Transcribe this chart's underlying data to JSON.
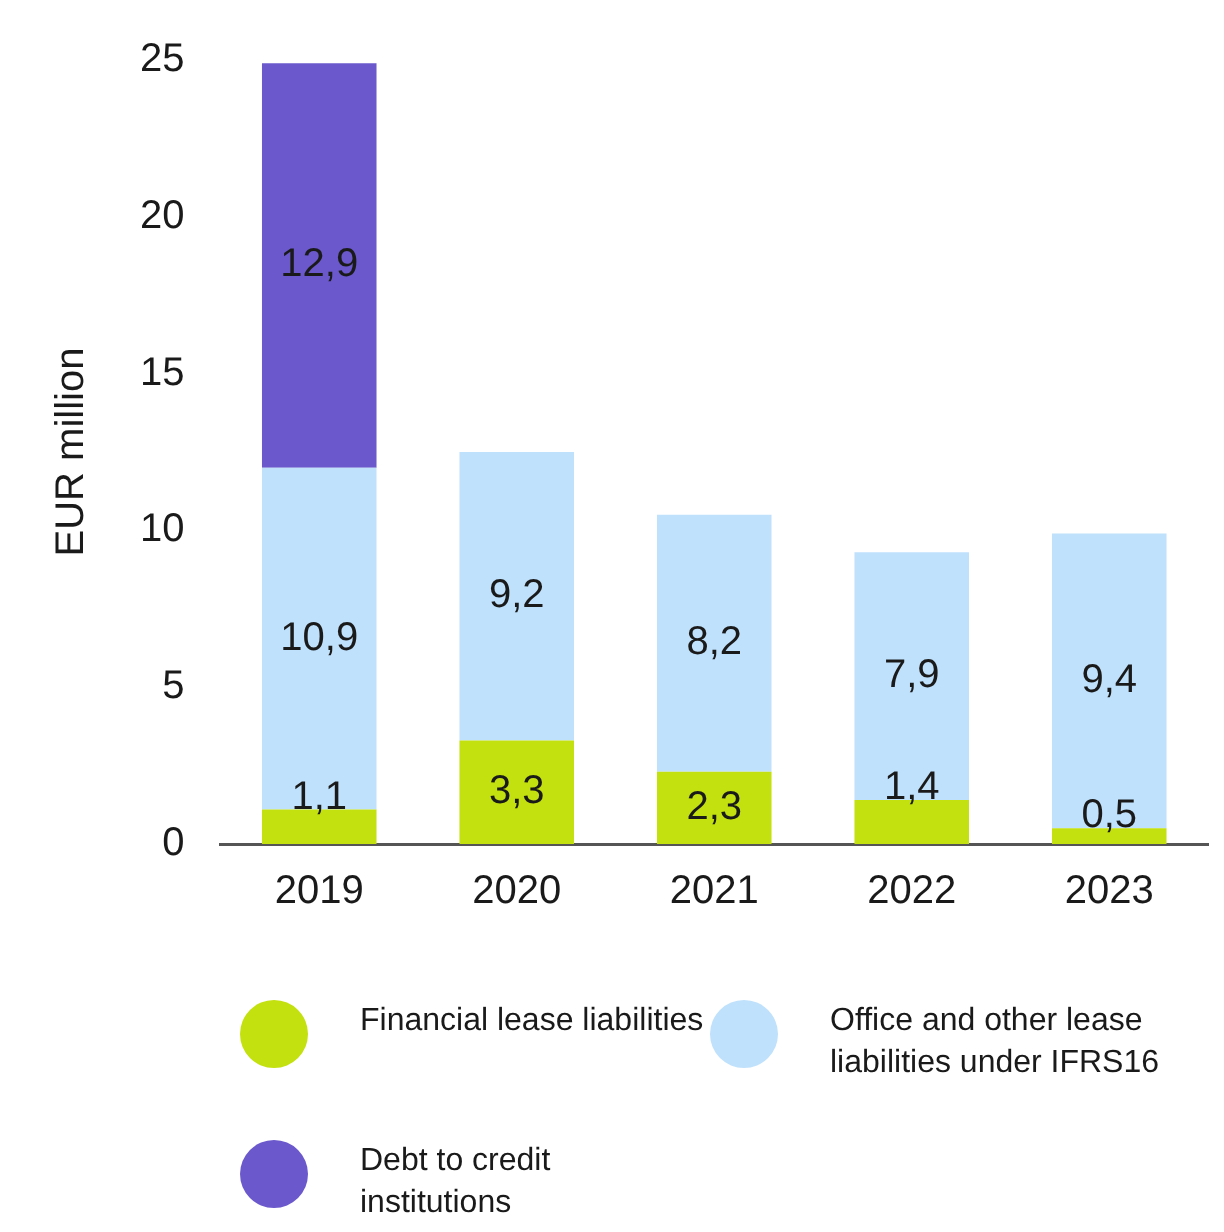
{
  "chart_data": {
    "type": "bar",
    "stacked": true,
    "ylabel": "EUR million",
    "categories": [
      "2019",
      "2020",
      "2021",
      "2022",
      "2023"
    ],
    "series": [
      {
        "name": "Financial lease liabilities",
        "color": "#c3e00f",
        "values": [
          1.1,
          3.3,
          2.3,
          1.4,
          0.5
        ],
        "value_labels": [
          "1,1",
          "3,3",
          "2,3",
          "1,4",
          "0,5"
        ]
      },
      {
        "name": "Office and other lease liabilities under IFRS16",
        "color": "#bfe1fc",
        "values": [
          10.9,
          9.2,
          8.2,
          7.9,
          9.4
        ],
        "value_labels": [
          "10,9",
          "9,2",
          "8,2",
          "7,9",
          "9,4"
        ]
      },
      {
        "name": "Debt to credit institutions",
        "color": "#6a58cc",
        "values": [
          12.9,
          null,
          null,
          null,
          null
        ],
        "value_labels": [
          "12,9",
          null,
          null,
          null,
          null
        ]
      }
    ],
    "ylim": [
      0,
      25
    ],
    "yticks": [
      0,
      5,
      10,
      15,
      20,
      25
    ],
    "grid": false,
    "legend": "bottom"
  }
}
